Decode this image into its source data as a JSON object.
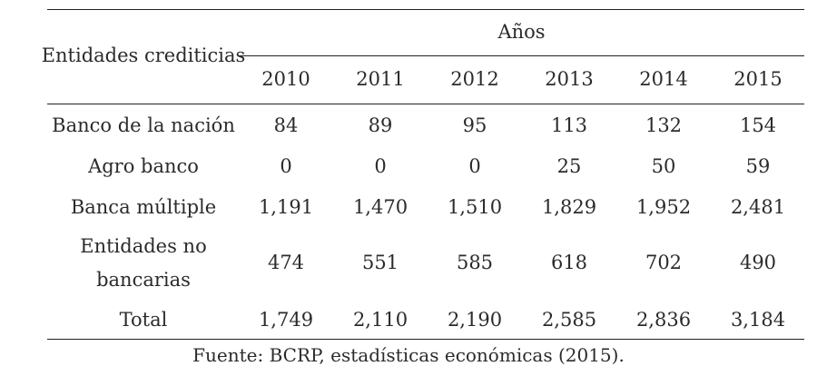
{
  "table": {
    "row_header": "Entidades crediticias",
    "group_header": "Años",
    "years": [
      "2010",
      "2011",
      "2012",
      "2013",
      "2014",
      "2015"
    ],
    "rows": [
      {
        "label_lines": [
          "Banco de la nación"
        ],
        "values": [
          "84",
          "89",
          "95",
          "113",
          "132",
          "154"
        ]
      },
      {
        "label_lines": [
          "Agro banco"
        ],
        "values": [
          "0",
          "0",
          "0",
          "25",
          "50",
          "59"
        ]
      },
      {
        "label_lines": [
          "Banca múltiple"
        ],
        "values": [
          "1,191",
          "1,470",
          "1,510",
          "1,829",
          "1,952",
          "2,481"
        ]
      },
      {
        "label_lines": [
          "Entidades no",
          "bancarias"
        ],
        "values": [
          "474",
          "551",
          "585",
          "618",
          "702",
          "490"
        ]
      },
      {
        "label_lines": [
          "Total"
        ],
        "values": [
          "1,749",
          "2,110",
          "2,190",
          "2,585",
          "2,836",
          "3,184"
        ]
      }
    ]
  },
  "source": "Fuente: BCRP, estadísticas económicas (2015)."
}
